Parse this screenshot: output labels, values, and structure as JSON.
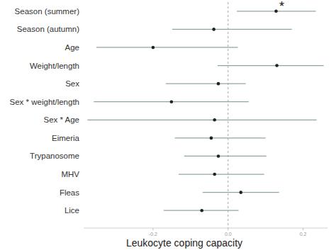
{
  "chart_data": {
    "type": "forest",
    "orientation": "horizontal",
    "x_label": "Leukocyte coping capacity",
    "categories": [
      "Season (summer)",
      "Season (autumn)",
      "Age",
      "Weight/length",
      "Sex",
      "Sex * weight/length",
      "Sex * Age",
      "Eimeria",
      "Trypanosome",
      "MHV",
      "Fleas",
      "Lice"
    ],
    "values": [
      0.128,
      -0.038,
      -0.2,
      0.13,
      -0.026,
      -0.151,
      -0.036,
      -0.045,
      -0.026,
      -0.036,
      0.034,
      -0.07
    ],
    "ci_low": [
      0.023,
      -0.149,
      -0.351,
      -0.028,
      -0.166,
      -0.358,
      -0.375,
      -0.142,
      -0.117,
      -0.132,
      -0.068,
      -0.172
    ],
    "ci_high": [
      0.234,
      0.17,
      0.026,
      0.255,
      0.047,
      0.055,
      0.236,
      0.1,
      0.102,
      0.096,
      0.136,
      0.028
    ],
    "color": "#8fa89a",
    "marker": "#222222",
    "xlim": [
      -0.385,
      0.265
    ],
    "xticks": [
      -0.2,
      {
        "value": 0,
        "label": "0.0"
      },
      0.2
    ],
    "reference_line": 0,
    "grid": false,
    "annotations": [
      {
        "text": "*",
        "category": 0
      }
    ]
  }
}
